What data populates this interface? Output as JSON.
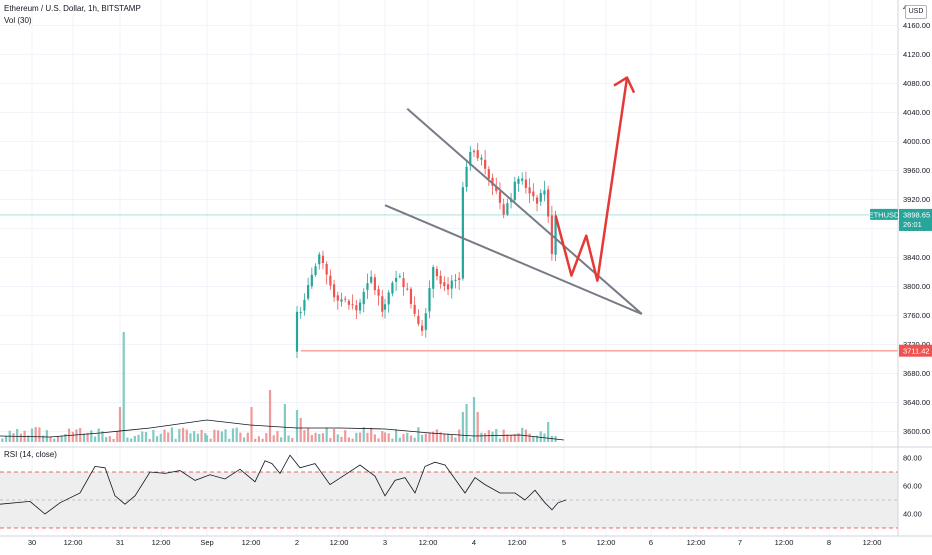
{
  "header": {
    "title": "Ethereum / U.S. Dollar, 1h, BITSTAMP",
    "volume_label": "Vol (30)",
    "rsi_label": "RSI (14, close)",
    "currency_button": "USD"
  },
  "price_axis": {
    "ticks": [
      "4160.00",
      "4120.00",
      "4080.00",
      "4040.00",
      "4000.00",
      "3960.00",
      "3920.00",
      "3880.00",
      "3840.00",
      "3800.00",
      "3760.00",
      "3720.00",
      "3680.00",
      "3640.00",
      "3600.00"
    ],
    "partial_top": "4..."
  },
  "rsi_axis": {
    "ticks": [
      "80.00",
      "60.00",
      "40.00"
    ]
  },
  "time_axis": {
    "labels": [
      "30",
      "12:00",
      "31",
      "12:00",
      "Sep",
      "12:00",
      "2",
      "12:00",
      "3",
      "12:00",
      "4",
      "12:00",
      "5",
      "12:00",
      "6",
      "12:00",
      "7",
      "12:00",
      "8",
      "12:00"
    ]
  },
  "tags": {
    "symbol": "ETHUSD",
    "price": "3898.65",
    "countdown": "26:01",
    "support": "3711.42"
  },
  "colors": {
    "up": "#26a69a",
    "down": "#ef5350",
    "trendline": "#787b86",
    "projection": "#e53935",
    "support_line": "#f7a59e",
    "price_line": "#26a69a",
    "rsi_line": "#131722",
    "rsi_band": "#e0e0e0"
  },
  "chart_data": {
    "type": "candlestick",
    "title": "Ethereum / U.S. Dollar, 1h, BITSTAMP",
    "y_range": [
      3580,
      4195
    ],
    "last_price": 3898.65,
    "support_level": 3711.42,
    "rsi_range": [
      30,
      85
    ],
    "rsi_bands": [
      70,
      50,
      30
    ],
    "trendlines": [
      {
        "name": "upper",
        "points": [
          [
            "3 06:00",
            4045
          ],
          [
            "5 21:00",
            3762
          ]
        ]
      },
      {
        "name": "lower",
        "points": [
          [
            "3 00:00",
            3912
          ],
          [
            "5 21:00",
            3762
          ]
        ]
      }
    ],
    "projection": [
      [
        "4 22:00",
        3898
      ],
      [
        "5 02:00",
        3815
      ],
      [
        "5 06:00",
        3870
      ],
      [
        "5 09:00",
        3808
      ],
      [
        "5 17:00",
        4088
      ]
    ],
    "grid": true
  }
}
